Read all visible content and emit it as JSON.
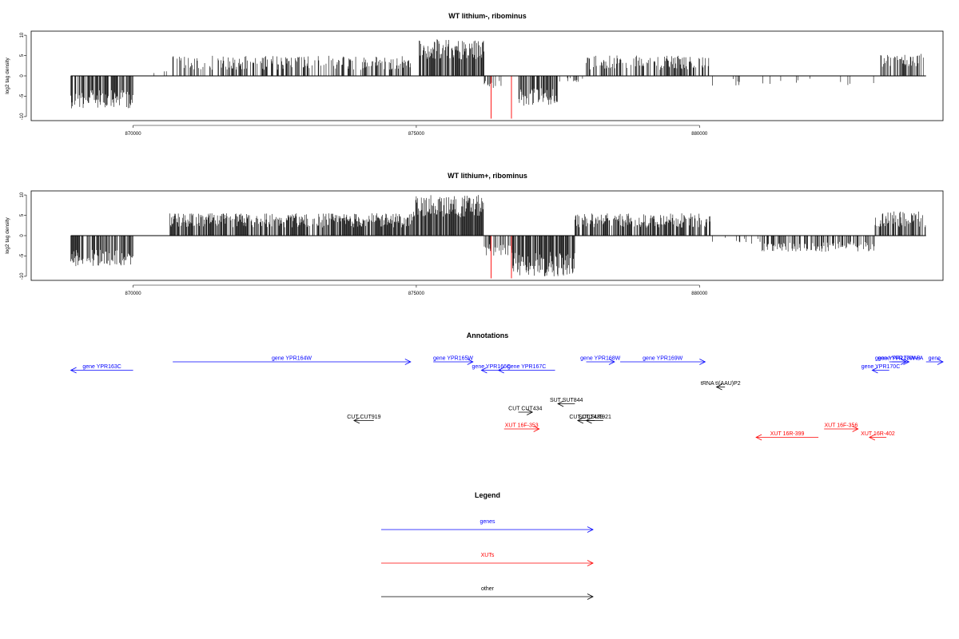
{
  "chart_data": [
    {
      "type": "bar",
      "title": "WT lithium-, ribominus",
      "ylabel": "log2 tag density",
      "xlabel": "",
      "xlim": [
        868200,
        884300
      ],
      "ylim": [
        -11,
        11
      ],
      "xticks": [
        870000,
        875000,
        880000
      ],
      "xtick_labels": [
        "870000",
        "875000",
        "880000"
      ],
      "yticks": [
        10,
        5,
        0,
        -5,
        -10
      ],
      "ytick_labels": [
        "10",
        "5",
        "0",
        "-5",
        "-10"
      ],
      "grid": false,
      "segments": [
        {
          "x": [
            868900,
            870000
          ],
          "dir": "down",
          "lo": 3.5,
          "hi": 8,
          "density": 0.7
        },
        {
          "x": [
            870350,
            870600
          ],
          "dir": "up",
          "lo": 0.5,
          "hi": 2,
          "density": 0.05
        },
        {
          "x": [
            870700,
            874900
          ],
          "dir": "up",
          "lo": 1.5,
          "hi": 5,
          "density": 0.45
        },
        {
          "x": [
            875050,
            876200
          ],
          "dir": "up",
          "lo": 4,
          "hi": 9,
          "density": 0.8
        },
        {
          "x": [
            876200,
            876500
          ],
          "dir": "down",
          "lo": 1,
          "hi": 3,
          "density": 0.3
        },
        {
          "x": [
            876800,
            877500
          ],
          "dir": "down",
          "lo": 3,
          "hi": 7.5,
          "density": 0.7
        },
        {
          "x": [
            877500,
            878000
          ],
          "dir": "down",
          "lo": 0.5,
          "hi": 1.5,
          "density": 0.1
        },
        {
          "x": [
            878000,
            880200
          ],
          "dir": "up",
          "lo": 1.5,
          "hi": 5,
          "density": 0.5
        },
        {
          "x": [
            880200,
            883200
          ],
          "dir": "down",
          "lo": 0.5,
          "hi": 2.5,
          "density": 0.04
        },
        {
          "x": [
            883200,
            884000
          ],
          "dir": "up",
          "lo": 2,
          "hi": 5.5,
          "density": 0.5
        }
      ],
      "red_spikes": [
        {
          "x": 876320,
          "y": -10.5
        },
        {
          "x": 876680,
          "y": -10.5
        }
      ]
    },
    {
      "type": "bar",
      "title": "WT lithium+, ribominus",
      "ylabel": "log2 tag density",
      "xlabel": "",
      "xlim": [
        868200,
        884300
      ],
      "ylim": [
        -11,
        11
      ],
      "xticks": [
        870000,
        875000,
        880000
      ],
      "xtick_labels": [
        "870000",
        "875000",
        "880000"
      ],
      "yticks": [
        10,
        5,
        0,
        -5,
        -10
      ],
      "ytick_labels": [
        "10",
        "5",
        "0",
        "-5",
        "-10"
      ],
      "grid": false,
      "segments": [
        {
          "x": [
            868900,
            870050
          ],
          "dir": "down",
          "lo": 3.5,
          "hi": 7.5,
          "density": 0.7
        },
        {
          "x": [
            870650,
            874950
          ],
          "dir": "up",
          "lo": 2,
          "hi": 5.5,
          "density": 0.8
        },
        {
          "x": [
            874950,
            876200
          ],
          "dir": "up",
          "lo": 4.5,
          "hi": 10,
          "density": 0.9
        },
        {
          "x": [
            876200,
            876700
          ],
          "dir": "down",
          "lo": 2,
          "hi": 5,
          "density": 0.5
        },
        {
          "x": [
            876700,
            877800
          ],
          "dir": "down",
          "lo": 4,
          "hi": 10,
          "density": 0.85
        },
        {
          "x": [
            877800,
            880200
          ],
          "dir": "up",
          "lo": 2,
          "hi": 5.5,
          "density": 0.7
        },
        {
          "x": [
            880200,
            881100
          ],
          "dir": "down",
          "lo": 0.5,
          "hi": 2,
          "density": 0.1
        },
        {
          "x": [
            881100,
            883100
          ],
          "dir": "down",
          "lo": 1.5,
          "hi": 4,
          "density": 0.45
        },
        {
          "x": [
            883100,
            884000
          ],
          "dir": "up",
          "lo": 2,
          "hi": 6,
          "density": 0.6
        }
      ],
      "red_spikes": [
        {
          "x": 876320,
          "y": -10.5
        },
        {
          "x": 876680,
          "y": -10.5
        }
      ]
    }
  ],
  "annotations": {
    "title": "Annotations",
    "colors": {
      "genes": "#0000ff",
      "XUTs": "#ff0000",
      "other": "#000000"
    },
    "items": [
      {
        "label": "gene YPR163C",
        "start": 870000,
        "end": 868900,
        "row": 1,
        "kind": "genes"
      },
      {
        "label": "gene YPR164W",
        "start": 870700,
        "end": 874900,
        "row": 0,
        "kind": "genes"
      },
      {
        "label": "gene YPR165W",
        "start": 875300,
        "end": 876000,
        "row": 0,
        "kind": "genes"
      },
      {
        "label": "gene YPR166C",
        "start": 876500,
        "end": 876150,
        "row": 1,
        "kind": "genes"
      },
      {
        "label": "gene YPR167C",
        "start": 877450,
        "end": 876450,
        "row": 1,
        "kind": "genes"
      },
      {
        "label": "gene YPR168W",
        "start": 878000,
        "end": 878500,
        "row": 0,
        "kind": "genes"
      },
      {
        "label": "gene YPR169W",
        "start": 878600,
        "end": 880100,
        "row": 0,
        "kind": "genes"
      },
      {
        "label": "gene YPR170W-B",
        "start": 883350,
        "end": 883650,
        "row": 0,
        "kind": "genes"
      },
      {
        "label": "gene YPR170W-A",
        "start": 883400,
        "end": 883700,
        "row": 0,
        "kind": "genes"
      },
      {
        "label": "gene YPR170C",
        "start": 883350,
        "end": 883050,
        "row": 1,
        "kind": "genes"
      },
      {
        "label": "gene",
        "start": 884000,
        "end": 884300,
        "row": 0,
        "kind": "genes"
      },
      {
        "label": "tRNA tI(AAU)P2",
        "start": 880450,
        "end": 880300,
        "row": 3,
        "kind": "other"
      },
      {
        "label": "SUT SUT844",
        "start": 877800,
        "end": 877500,
        "row": 5,
        "kind": "other"
      },
      {
        "label": "CUT CUT434",
        "start": 876800,
        "end": 877050,
        "row": 6,
        "kind": "other"
      },
      {
        "label": "CUT CUT919",
        "start": 874250,
        "end": 873900,
        "row": 7,
        "kind": "other"
      },
      {
        "label": "CUT CUT439",
        "start": 878150,
        "end": 877850,
        "row": 7,
        "kind": "other"
      },
      {
        "label": "SUT SUT921",
        "start": 878300,
        "end": 878000,
        "row": 7,
        "kind": "other"
      },
      {
        "label": "XUT 16F-353",
        "start": 876550,
        "end": 877170,
        "row": 8,
        "kind": "XUTs"
      },
      {
        "label": "XUT 16F-356",
        "start": 882200,
        "end": 882800,
        "row": 8,
        "kind": "XUTs"
      },
      {
        "label": "XUT 16R-399",
        "start": 882100,
        "end": 881000,
        "row": 9,
        "kind": "XUTs"
      },
      {
        "label": "XUT 16R-402",
        "start": 883300,
        "end": 883000,
        "row": 9,
        "kind": "XUTs"
      }
    ]
  },
  "legend": {
    "title": "Legend",
    "items": [
      {
        "label": "genes",
        "color": "#0000ff"
      },
      {
        "label": "XUTs",
        "color": "#ff0000"
      },
      {
        "label": "other",
        "color": "#000000"
      }
    ]
  }
}
